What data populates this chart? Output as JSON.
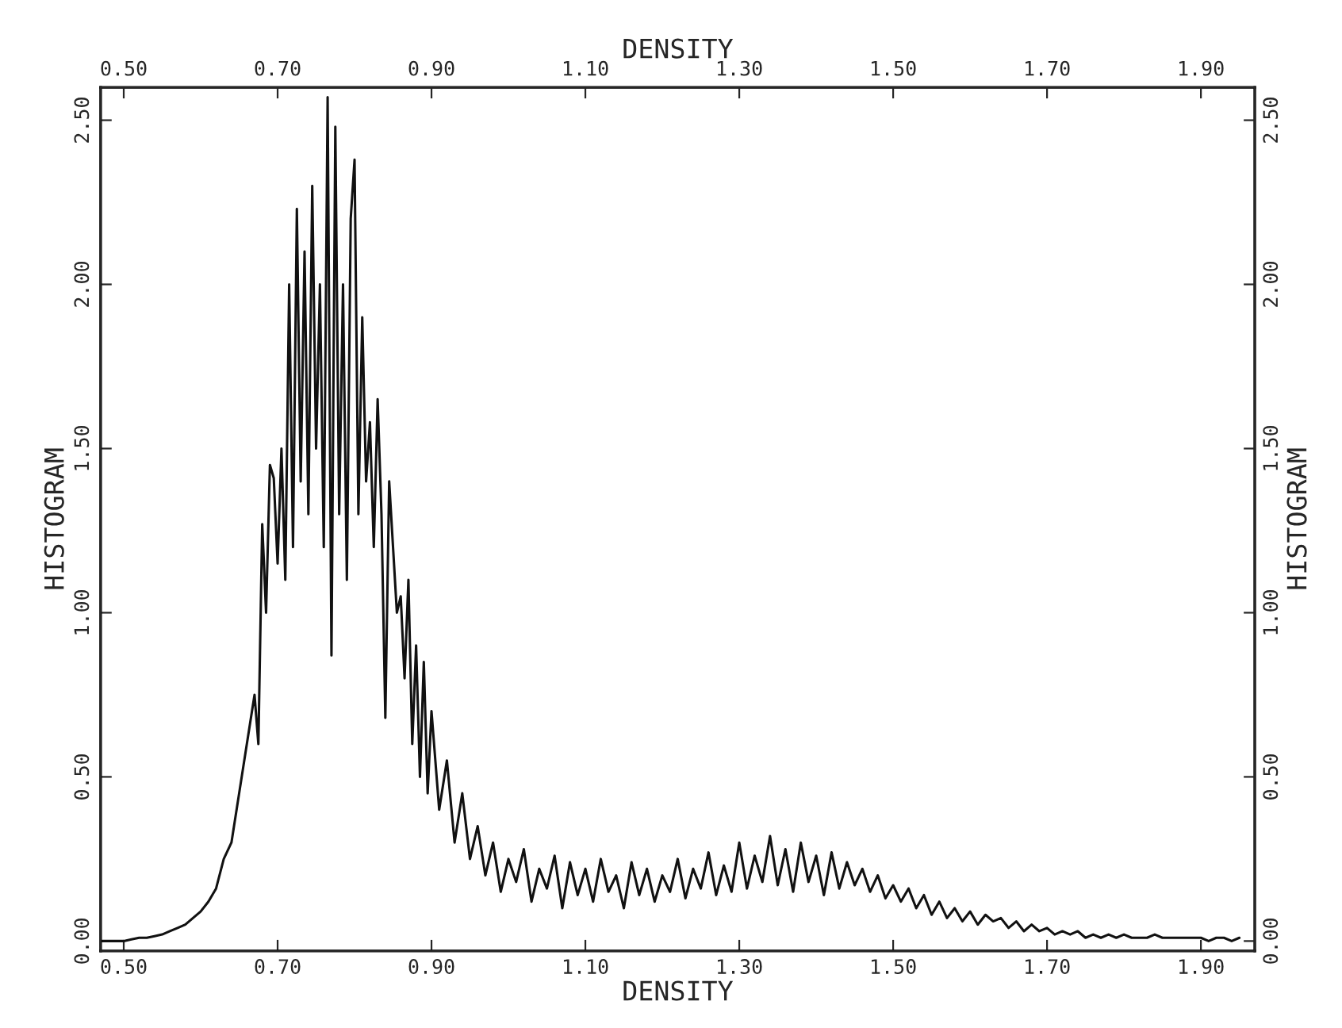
{
  "chart_data": {
    "type": "line",
    "xlabel": "DENSITY",
    "x2label": "DENSITY",
    "ylabel": "HISTOGRAM",
    "y2label": "HISTOGRAM",
    "xlim": [
      0.47,
      1.97
    ],
    "ylim": [
      -0.03,
      2.6
    ],
    "x2lim": [
      0.47,
      1.97
    ],
    "y2lim": [
      -0.03,
      2.6
    ],
    "xticks": [
      {
        "value": 0.5,
        "label": "0.50"
      },
      {
        "value": 0.7,
        "label": "0.70"
      },
      {
        "value": 0.9,
        "label": "0.90"
      },
      {
        "value": 1.1,
        "label": "1.10"
      },
      {
        "value": 1.3,
        "label": "1.30"
      },
      {
        "value": 1.5,
        "label": "1.50"
      },
      {
        "value": 1.7,
        "label": "1.70"
      },
      {
        "value": 1.9,
        "label": "1.90"
      }
    ],
    "x2ticks": [
      {
        "value": 0.5,
        "label": "0.50"
      },
      {
        "value": 0.7,
        "label": "0.70"
      },
      {
        "value": 0.9,
        "label": "0.90"
      },
      {
        "value": 1.1,
        "label": "1.10"
      },
      {
        "value": 1.3,
        "label": "1.30"
      },
      {
        "value": 1.5,
        "label": "1.50"
      },
      {
        "value": 1.7,
        "label": "1.70"
      },
      {
        "value": 1.9,
        "label": "1.90"
      }
    ],
    "yticks": [
      {
        "value": 0,
        "label": "0.00"
      },
      {
        "value": 0.5,
        "label": "0.50"
      },
      {
        "value": 1.0,
        "label": "1.00"
      },
      {
        "value": 1.5,
        "label": "1.50"
      },
      {
        "value": 2.0,
        "label": "2.00"
      },
      {
        "value": 2.5,
        "label": "2.50"
      }
    ],
    "y2ticks": [
      {
        "value": 0,
        "label": "0.00"
      },
      {
        "value": 0.5,
        "label": "0.50"
      },
      {
        "value": 1.0,
        "label": "1.00"
      },
      {
        "value": 1.5,
        "label": "1.50"
      },
      {
        "value": 2.0,
        "label": "2.00"
      },
      {
        "value": 2.5,
        "label": "2.50"
      }
    ],
    "grid": false,
    "series": [
      {
        "color": "#111111",
        "x": [
          0.47,
          0.48,
          0.49,
          0.5,
          0.51,
          0.52,
          0.53,
          0.54,
          0.55,
          0.56,
          0.57,
          0.58,
          0.59,
          0.6,
          0.61,
          0.62,
          0.63,
          0.64,
          0.65,
          0.66,
          0.67,
          0.675,
          0.68,
          0.685,
          0.69,
          0.695,
          0.7,
          0.705,
          0.71,
          0.715,
          0.72,
          0.725,
          0.73,
          0.735,
          0.74,
          0.745,
          0.75,
          0.755,
          0.76,
          0.765,
          0.77,
          0.775,
          0.78,
          0.785,
          0.79,
          0.795,
          0.8,
          0.805,
          0.81,
          0.815,
          0.82,
          0.825,
          0.83,
          0.835,
          0.84,
          0.845,
          0.85,
          0.855,
          0.86,
          0.865,
          0.87,
          0.875,
          0.88,
          0.885,
          0.89,
          0.895,
          0.9,
          0.91,
          0.92,
          0.93,
          0.94,
          0.95,
          0.96,
          0.97,
          0.98,
          0.99,
          1.0,
          1.01,
          1.02,
          1.03,
          1.04,
          1.05,
          1.06,
          1.07,
          1.08,
          1.09,
          1.1,
          1.11,
          1.12,
          1.13,
          1.14,
          1.15,
          1.16,
          1.17,
          1.18,
          1.19,
          1.2,
          1.21,
          1.22,
          1.23,
          1.24,
          1.25,
          1.26,
          1.27,
          1.28,
          1.29,
          1.3,
          1.31,
          1.32,
          1.33,
          1.34,
          1.35,
          1.36,
          1.37,
          1.38,
          1.39,
          1.4,
          1.41,
          1.42,
          1.43,
          1.44,
          1.45,
          1.46,
          1.47,
          1.48,
          1.49,
          1.5,
          1.51,
          1.52,
          1.53,
          1.54,
          1.55,
          1.56,
          1.57,
          1.58,
          1.59,
          1.6,
          1.61,
          1.62,
          1.63,
          1.64,
          1.65,
          1.66,
          1.67,
          1.68,
          1.69,
          1.7,
          1.71,
          1.72,
          1.73,
          1.74,
          1.75,
          1.76,
          1.77,
          1.78,
          1.79,
          1.8,
          1.81,
          1.82,
          1.83,
          1.84,
          1.85,
          1.86,
          1.87,
          1.88,
          1.89,
          1.9,
          1.91,
          1.92,
          1.93,
          1.94,
          1.95
        ],
        "values": [
          0,
          0,
          0,
          0,
          0.005,
          0.01,
          0.01,
          0.015,
          0.02,
          0.03,
          0.04,
          0.05,
          0.07,
          0.09,
          0.12,
          0.16,
          0.25,
          0.3,
          0.45,
          0.6,
          0.75,
          0.6,
          1.27,
          1.0,
          1.45,
          1.41,
          1.15,
          1.5,
          1.1,
          2.0,
          1.2,
          2.23,
          1.4,
          2.1,
          1.3,
          2.3,
          1.5,
          2.0,
          1.2,
          2.57,
          0.87,
          2.48,
          1.3,
          2.0,
          1.1,
          2.2,
          2.38,
          1.3,
          1.9,
          1.4,
          1.58,
          1.2,
          1.65,
          1.3,
          0.68,
          1.4,
          1.2,
          1.0,
          1.05,
          0.8,
          1.1,
          0.6,
          0.9,
          0.5,
          0.85,
          0.45,
          0.7,
          0.4,
          0.55,
          0.3,
          0.45,
          0.25,
          0.35,
          0.2,
          0.3,
          0.15,
          0.25,
          0.18,
          0.28,
          0.12,
          0.22,
          0.16,
          0.26,
          0.1,
          0.24,
          0.14,
          0.22,
          0.12,
          0.25,
          0.15,
          0.2,
          0.1,
          0.24,
          0.14,
          0.22,
          0.12,
          0.2,
          0.15,
          0.25,
          0.13,
          0.22,
          0.16,
          0.27,
          0.14,
          0.23,
          0.15,
          0.3,
          0.16,
          0.26,
          0.18,
          0.32,
          0.17,
          0.28,
          0.15,
          0.3,
          0.18,
          0.26,
          0.14,
          0.27,
          0.16,
          0.24,
          0.17,
          0.22,
          0.15,
          0.2,
          0.13,
          0.17,
          0.12,
          0.16,
          0.1,
          0.14,
          0.08,
          0.12,
          0.07,
          0.1,
          0.06,
          0.09,
          0.05,
          0.08,
          0.06,
          0.07,
          0.04,
          0.06,
          0.03,
          0.05,
          0.03,
          0.04,
          0.02,
          0.03,
          0.02,
          0.03,
          0.01,
          0.02,
          0.01,
          0.02,
          0.01,
          0.02,
          0.01,
          0.01,
          0.01,
          0.02,
          0.01,
          0.01,
          0.01,
          0.01,
          0.01,
          0.01,
          0,
          0.01,
          0.01,
          0,
          0.01
        ]
      }
    ]
  }
}
